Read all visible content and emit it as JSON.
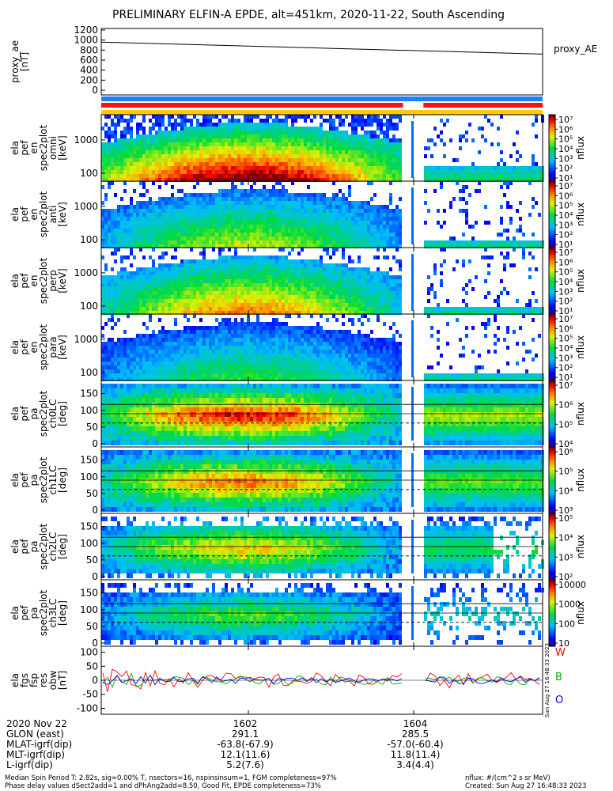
{
  "title": "PRELIMINARY ELFIN-A EPDE, alt=451km, 2020-11-22, South Ascending",
  "colors": {
    "proxy_line": "#000000",
    "bar_blue": "#1e7fff",
    "bar_red": "#ff1010",
    "bar_yellow": "#ffc800",
    "mag_w": "#ff0000",
    "mag_b": "#00b000",
    "mag_o": "#0000ff"
  },
  "chart_data": [
    {
      "id": "proxy_ae",
      "type": "line",
      "ylabel": [
        "proxy_ae",
        "[nT]"
      ],
      "ylim": [
        0,
        1200
      ],
      "yticks": [
        "1200",
        "1000",
        "800",
        "600",
        "400",
        "200",
        "0"
      ],
      "legend": "proxy_AE",
      "series": [
        {
          "name": "proxy_AE",
          "x": [
            0,
            1
          ],
          "values": [
            960,
            720
          ]
        }
      ]
    },
    {
      "id": "status_bars",
      "type": "bar",
      "bars": [
        {
          "color": "#1e7fff",
          "segments": [
            [
              0,
              1
            ]
          ]
        },
        {
          "color": "#ff1010",
          "segments": [
            [
              0,
              0.684
            ],
            [
              0.73,
              1
            ]
          ]
        },
        {
          "color": "#ffc800",
          "segments": [
            [
              0,
              1
            ]
          ]
        }
      ]
    },
    {
      "id": "spec_en_1",
      "type": "heatmap",
      "ylabel": [
        "ela",
        "pef",
        "en",
        "spec2plot",
        "omni",
        "[keV]"
      ],
      "scale": "log",
      "yticks": [
        "1000",
        "100"
      ],
      "colorbar": {
        "label": "nflux",
        "ticks": [
          "10⁷",
          "10⁶",
          "10⁵",
          "10⁴",
          "10³",
          "10²",
          "10¹"
        ]
      }
    },
    {
      "id": "spec_en_2",
      "type": "heatmap",
      "ylabel": [
        "ela",
        "pef",
        "en",
        "spec2plot",
        "anti",
        "[keV]"
      ],
      "scale": "log",
      "yticks": [
        "1000",
        "100"
      ],
      "colorbar": {
        "label": "nflux",
        "ticks": [
          "10⁷",
          "10⁶",
          "10⁵",
          "10⁴",
          "10³",
          "10²",
          "10¹"
        ]
      }
    },
    {
      "id": "spec_en_3",
      "type": "heatmap",
      "ylabel": [
        "ela",
        "pef",
        "en",
        "spec2plot",
        "perp",
        "[keV]"
      ],
      "scale": "log",
      "yticks": [
        "1000",
        "100"
      ],
      "colorbar": {
        "label": "nflux",
        "ticks": [
          "10⁷",
          "10⁶",
          "10⁵",
          "10⁴",
          "10³",
          "10²",
          "10¹"
        ]
      }
    },
    {
      "id": "spec_en_4",
      "type": "heatmap",
      "ylabel": [
        "ela",
        "pef",
        "en",
        "spec2plot",
        "para",
        "[keV]"
      ],
      "scale": "log",
      "yticks": [
        "1000",
        "100"
      ],
      "colorbar": {
        "label": "nflux",
        "ticks": [
          "10⁷",
          "10⁶",
          "10⁵",
          "10⁴",
          "10³",
          "10²",
          "10¹"
        ]
      }
    },
    {
      "id": "spec_pa_0",
      "type": "heatmap",
      "ylabel": [
        "ela",
        "pef",
        "pa",
        "spec2plot",
        "ch0LC",
        "[deg]"
      ],
      "ylim": [
        0,
        180
      ],
      "yticks": [
        "150",
        "100",
        "50",
        "0"
      ],
      "colorbar": {
        "label": "nflux",
        "ticks": [
          "10⁷",
          "10⁶",
          "10⁵",
          "10⁴"
        ]
      }
    },
    {
      "id": "spec_pa_1",
      "type": "heatmap",
      "ylabel": [
        "ela",
        "pef",
        "pa",
        "spec2plot",
        "ch1LC",
        "[deg]"
      ],
      "ylim": [
        0,
        180
      ],
      "yticks": [
        "150",
        "100",
        "50",
        "0"
      ],
      "colorbar": {
        "label": "nflux",
        "ticks": [
          "10⁶",
          "10⁵",
          "10⁴",
          "10³"
        ]
      }
    },
    {
      "id": "spec_pa_2",
      "type": "heatmap",
      "ylabel": [
        "ela",
        "pef",
        "pa",
        "spec2plot",
        "ch2LC",
        "[deg]"
      ],
      "ylim": [
        0,
        180
      ],
      "yticks": [
        "150",
        "100",
        "50",
        "0"
      ],
      "colorbar": {
        "label": "nflux",
        "ticks": [
          "10⁵",
          "10⁴",
          "10³",
          "10²"
        ]
      }
    },
    {
      "id": "spec_pa_3",
      "type": "heatmap",
      "ylabel": [
        "ela",
        "pef",
        "pa",
        "spec2plot",
        "ch3LC",
        "[deg]"
      ],
      "ylim": [
        0,
        180
      ],
      "yticks": [
        "150",
        "100",
        "50",
        "0"
      ],
      "colorbar": {
        "label": "nflux",
        "ticks": [
          "10000",
          "1000",
          "100",
          "10"
        ]
      }
    },
    {
      "id": "mag_residual",
      "type": "line",
      "ylabel": [
        "ela",
        "fgs",
        "fsp",
        "res",
        "obw",
        "[nT]"
      ],
      "ylim": [
        -110,
        110
      ],
      "yticks": [
        "100",
        "50",
        "0",
        "-50",
        "-100"
      ],
      "legend": [
        "W",
        "B",
        "O"
      ],
      "series": [
        {
          "name": "W"
        },
        {
          "name": "B"
        },
        {
          "name": "O"
        }
      ]
    }
  ],
  "xaxis": {
    "ticks": [
      "1602",
      "1604"
    ]
  },
  "ephemeris": {
    "labels": [
      "2020 Nov 22",
      "GLON (east)",
      "MLAT-igrf(dip)",
      "MLT-igrf(dip)",
      "L-igrf(dip)"
    ],
    "col1602": [
      "1602",
      "291.1",
      "-63.8(-67.9)",
      "12.1(11.6)",
      "5.2(7.6)"
    ],
    "col1604": [
      "1604",
      "285.5",
      "-57.0(-60.4)",
      "11.8(11.4)",
      "3.4(4.4)"
    ]
  },
  "footer": {
    "line1": "Median Spin Period T: 2.82s, sig=0.00% T, nsectors=16, nspinsinsum=1, FGM completeness=97%",
    "line2": "Phase delay values dSect2add=1 and dPhAng2add=8.50, Good Fit, EPDE completeness=73%",
    "units": "nflux: #/(cm^2 s sr MeV)",
    "created": "Created: Sun Aug 27 16:48:33 2023",
    "stamp": "Sun Aug 27 16:48:33 2023"
  }
}
